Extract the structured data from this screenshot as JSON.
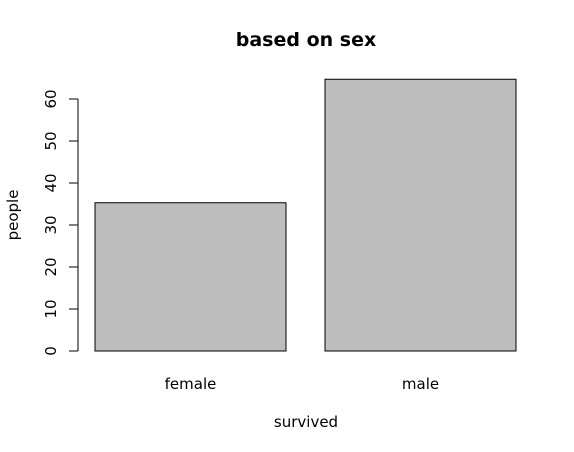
{
  "chart_data": {
    "type": "bar",
    "title": "based on sex",
    "xlabel": "survived",
    "ylabel": "people",
    "categories": [
      "female",
      "male"
    ],
    "values": [
      35.3,
      64.7
    ],
    "ylim": [
      0,
      65
    ],
    "yticks": [
      0,
      10,
      20,
      30,
      40,
      50,
      60
    ],
    "bar_color": "#bebebe",
    "grid": false
  }
}
